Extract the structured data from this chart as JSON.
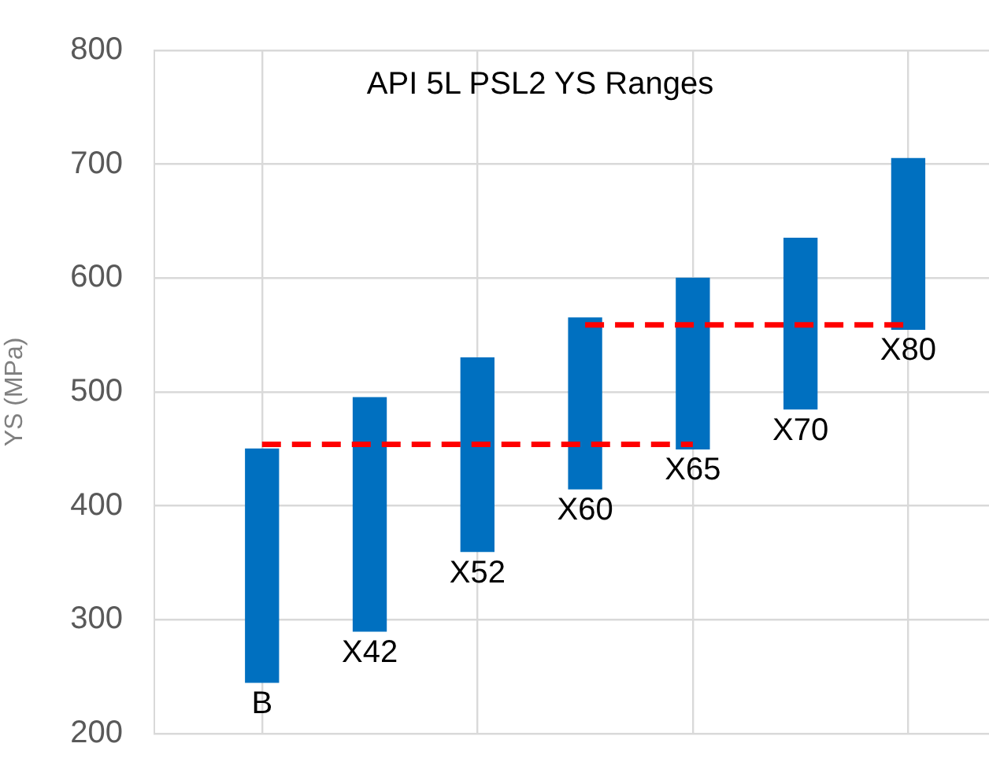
{
  "chart_data": {
    "type": "bar",
    "title": "API 5L PSL2 YS Ranges",
    "ylabel": "YS (MPa)",
    "categories": [
      null,
      null,
      null,
      null,
      null,
      null,
      null
    ],
    "ylim": [
      200,
      800
    ],
    "yticks": [
      200,
      300,
      400,
      500,
      600,
      700,
      800
    ],
    "tick_labels": "y",
    "grid": true,
    "legend": false,
    "series": [
      {
        "color": "#0070c0",
        "base": [
          245,
          290,
          360,
          415,
          450,
          485,
          555
        ],
        "values": [
          205,
          205,
          170,
          150,
          150,
          150,
          150
        ]
      },
      {
        "type": "line",
        "color": "#ff0000",
        "line_style": "dashed",
        "marker": "none",
        "values": [
          454,
          454,
          454,
          454,
          454,
          null,
          null
        ]
      },
      {
        "type": "line",
        "color": "#ff0000",
        "line_style": "dashed",
        "marker": "none",
        "values": [
          null,
          null,
          null,
          559,
          559,
          559,
          559
        ]
      }
    ],
    "annotations": [
      "B",
      "X42",
      "X52",
      "X60",
      "X65",
      "X70",
      "X80"
    ]
  }
}
